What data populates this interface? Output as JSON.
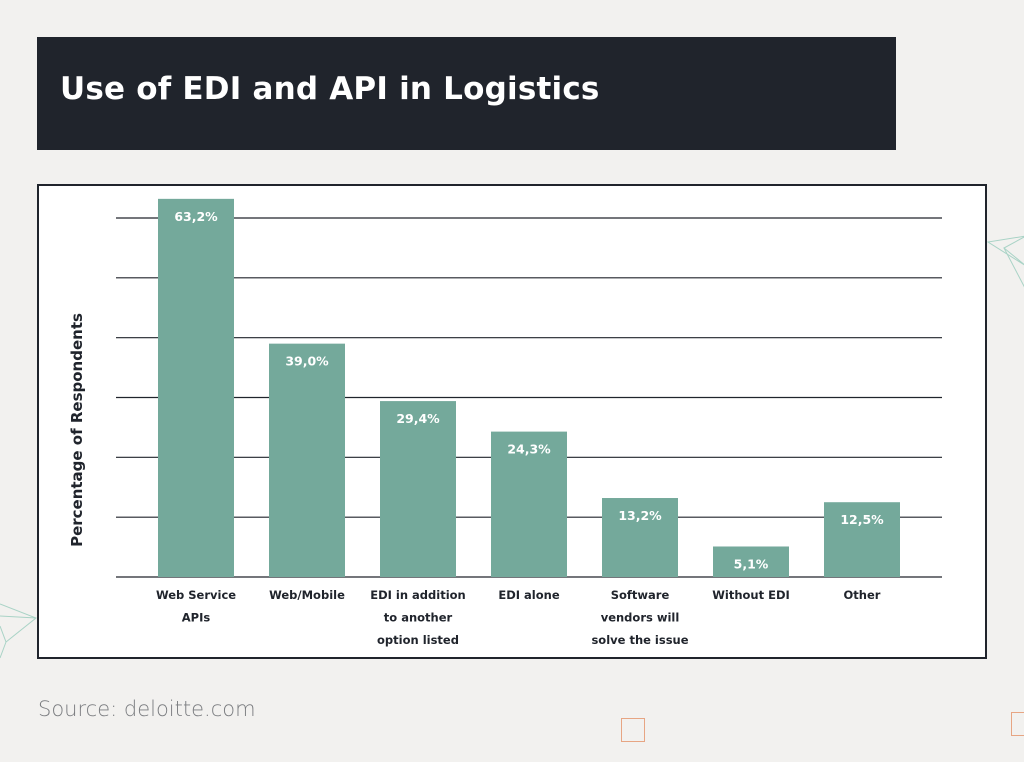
{
  "title": "Use of EDI and API in Logistics",
  "source": "Source: deloitte.com",
  "colors": {
    "title_bg": "#20242c",
    "bar": "#74a99b",
    "page_bg": "#f2f1ef",
    "accent_square": "#e7a583",
    "decor_lines": "#a9d3c6"
  },
  "chart_data": {
    "type": "bar",
    "ylabel": "Percentage of Respondents",
    "xlabel": "",
    "ylim": [
      0,
      70
    ],
    "grid": true,
    "y_ticks_labeled": false,
    "categories": [
      [
        "Web Service",
        "APIs"
      ],
      [
        "Web/Mobile"
      ],
      [
        "EDI in addition",
        "to another",
        "option listed"
      ],
      [
        "EDI alone"
      ],
      [
        "Software",
        "vendors will",
        "solve the issue"
      ],
      [
        "Without EDI"
      ],
      [
        "Other"
      ]
    ],
    "values": [
      63.2,
      39.0,
      29.4,
      24.3,
      13.2,
      5.1,
      12.5
    ],
    "value_labels": [
      "63,2%",
      "39,0%",
      "29,4%",
      "24,3%",
      "13,2%",
      "5,1%",
      "12,5%"
    ]
  }
}
